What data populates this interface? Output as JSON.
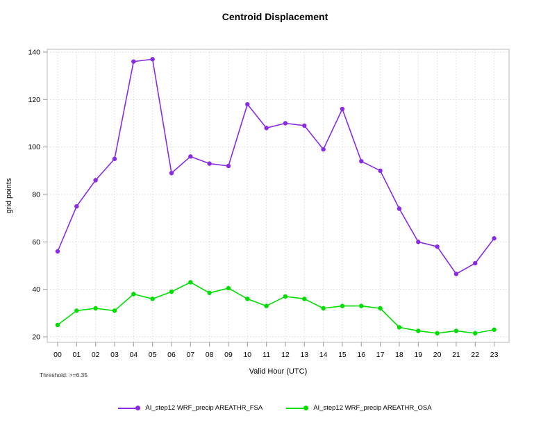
{
  "chart_data": {
    "type": "line",
    "title": "Centroid Displacement",
    "xlabel": "Valid Hour (UTC)",
    "ylabel": "grid points",
    "threshold_note": "Threshold: >=6.35",
    "categories": [
      "00",
      "01",
      "02",
      "03",
      "04",
      "05",
      "06",
      "07",
      "08",
      "09",
      "10",
      "11",
      "12",
      "13",
      "14",
      "15",
      "16",
      "17",
      "18",
      "19",
      "20",
      "21",
      "22",
      "23"
    ],
    "yticks": [
      20,
      40,
      60,
      80,
      100,
      120,
      140
    ],
    "ylim": [
      20,
      140
    ],
    "grid": true,
    "legend_position": "bottom",
    "series": [
      {
        "name": "AI_step12 WRF_precip AREATHR_FSA",
        "color": "#8A2BE2",
        "values": [
          56,
          75,
          86,
          95,
          136,
          137,
          89,
          96,
          93,
          92,
          118,
          108,
          110,
          109,
          99,
          116,
          94,
          90,
          74,
          60,
          58,
          46.5,
          51,
          61.5
        ]
      },
      {
        "name": "AI_step12 WRF_precip AREATHR_OSA",
        "color": "#00DD00",
        "values": [
          25,
          31,
          32,
          31,
          38,
          36,
          39,
          43,
          38.5,
          40.5,
          36,
          33,
          37,
          36,
          32,
          33,
          33,
          32,
          24,
          22.5,
          21.5,
          22.5,
          21.5,
          23
        ]
      }
    ],
    "colors": {
      "grid_line": "#d8d8d8",
      "frame": "#c4c4c4",
      "tick_mark": "#a8a8a8",
      "text": "#000000"
    }
  }
}
